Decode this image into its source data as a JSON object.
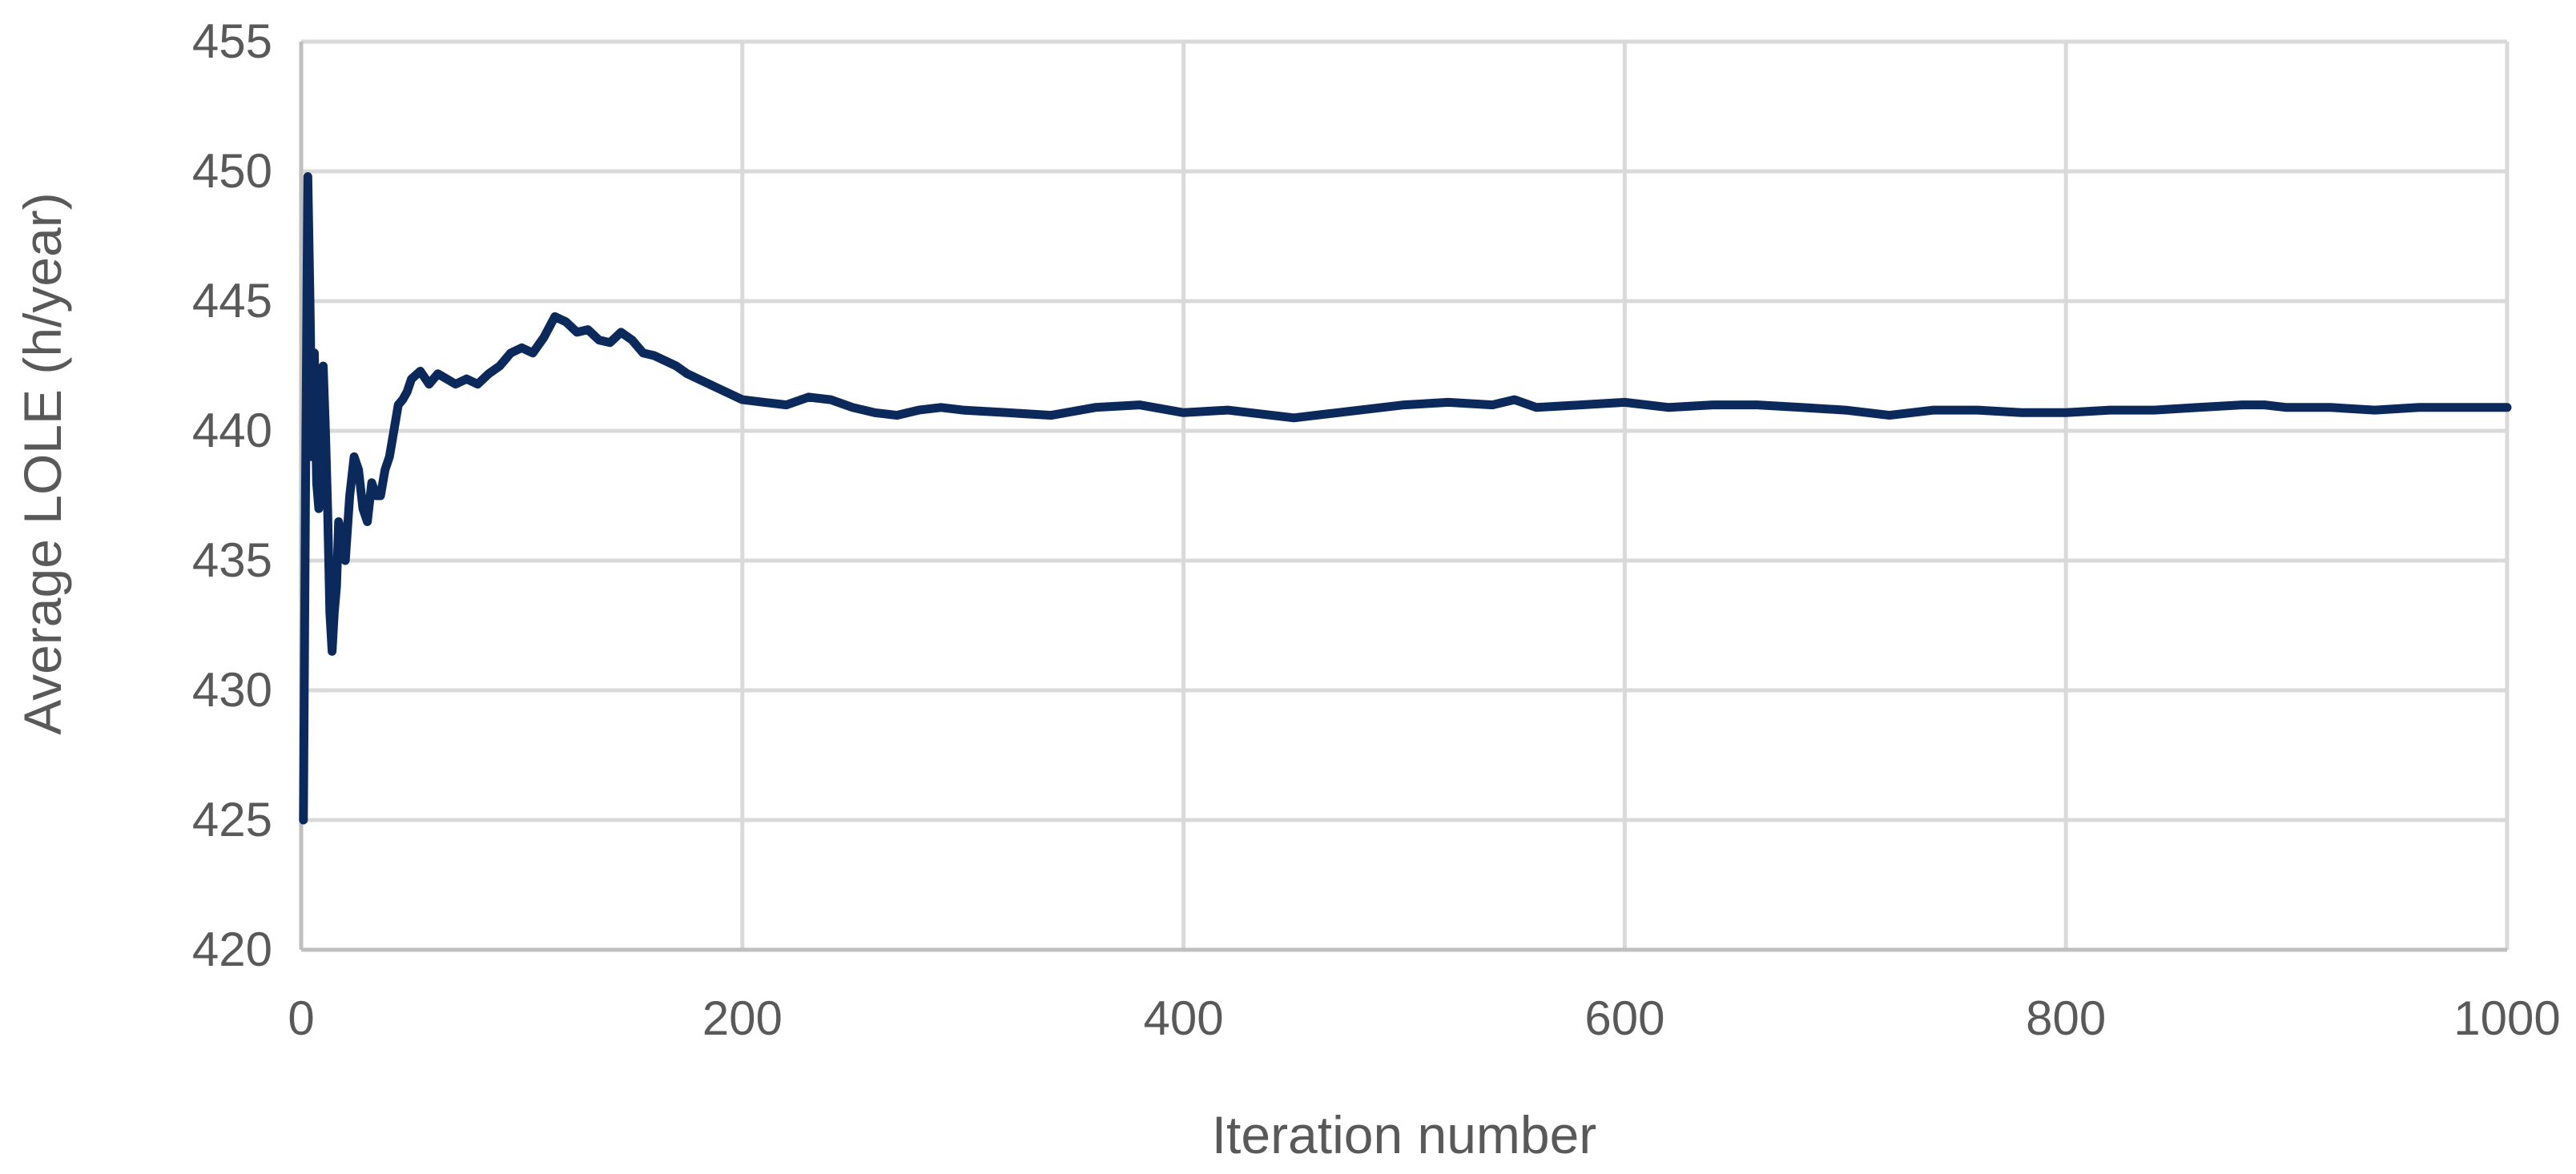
{
  "chart_data": {
    "type": "line",
    "title": "",
    "xlabel": "Iteration number",
    "ylabel": "Average LOLE (h/year)",
    "xlim": [
      0,
      1000
    ],
    "ylim": [
      420,
      455
    ],
    "xticks": [
      0,
      200,
      400,
      600,
      800,
      1000
    ],
    "yticks": [
      420,
      425,
      430,
      435,
      440,
      445,
      450,
      455
    ],
    "xtick_labels": [
      "0",
      "200",
      "400",
      "600",
      "800",
      "1000"
    ],
    "ytick_labels": [
      "420",
      "425",
      "430",
      "435",
      "440",
      "445",
      "450",
      "455"
    ],
    "grid": true,
    "legend": "none",
    "line_color": "#0b2a5b",
    "series": [
      {
        "x": [
          1,
          2,
          3,
          4,
          5,
          6,
          7,
          8,
          9,
          10,
          11,
          12,
          13,
          14,
          15,
          16,
          17,
          18,
          19,
          20,
          22,
          24,
          26,
          28,
          30,
          32,
          34,
          36,
          38,
          40,
          42,
          44,
          46,
          48,
          50,
          54,
          58,
          62,
          66,
          70,
          75,
          80,
          85,
          90,
          95,
          100,
          105,
          110,
          115,
          120,
          125,
          130,
          135,
          140,
          145,
          150,
          155,
          160,
          165,
          170,
          175,
          180,
          185,
          190,
          200,
          210,
          220,
          230,
          240,
          250,
          260,
          270,
          280,
          290,
          300,
          320,
          340,
          360,
          380,
          400,
          420,
          440,
          450,
          470,
          500,
          520,
          540,
          550,
          560,
          580,
          600,
          620,
          640,
          660,
          680,
          700,
          720,
          740,
          760,
          780,
          800,
          820,
          840,
          860,
          880,
          890,
          900,
          920,
          940,
          960,
          980,
          1000
        ],
        "values": [
          425.0,
          438.0,
          449.8,
          445.0,
          439.0,
          443.0,
          438.0,
          437.0,
          440.0,
          442.5,
          440.0,
          437.0,
          433.0,
          431.5,
          433.0,
          434.0,
          436.5,
          436.0,
          435.5,
          435.0,
          437.5,
          439.0,
          438.5,
          437.0,
          436.5,
          438.0,
          437.5,
          437.5,
          438.5,
          439.0,
          440.0,
          441.0,
          441.2,
          441.5,
          442.0,
          442.3,
          441.8,
          442.2,
          442.0,
          441.8,
          442.0,
          441.8,
          442.2,
          442.5,
          443.0,
          443.2,
          443.0,
          443.6,
          444.4,
          444.2,
          443.8,
          443.9,
          443.5,
          443.4,
          443.8,
          443.5,
          443.0,
          442.9,
          442.7,
          442.5,
          442.2,
          442.0,
          441.8,
          441.6,
          441.2,
          441.1,
          441.0,
          441.3,
          441.2,
          440.9,
          440.7,
          440.6,
          440.8,
          440.9,
          440.8,
          440.7,
          440.6,
          440.9,
          441.0,
          440.7,
          440.8,
          440.6,
          440.5,
          440.7,
          441.0,
          441.1,
          441.0,
          441.2,
          440.9,
          441.0,
          441.1,
          440.9,
          441.0,
          441.0,
          440.9,
          440.8,
          440.6,
          440.8,
          440.8,
          440.7,
          440.7,
          440.8,
          440.8,
          440.9,
          441.0,
          441.0,
          440.9,
          440.9,
          440.8,
          440.9,
          440.9,
          440.9
        ]
      }
    ]
  }
}
